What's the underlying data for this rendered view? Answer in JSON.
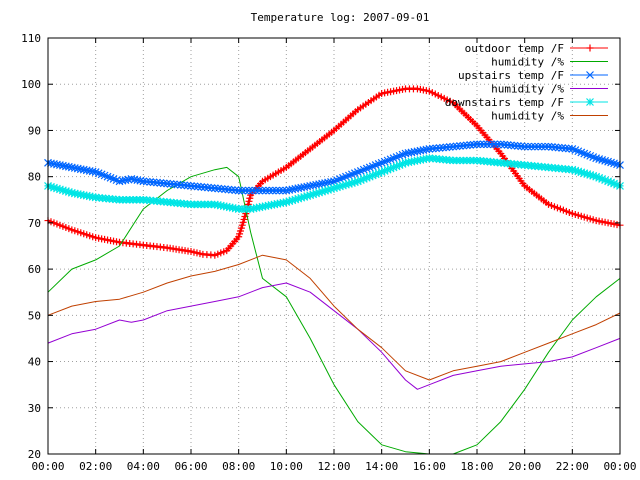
{
  "chart_data": {
    "type": "line",
    "title": "Temperature log: 2007-09-01",
    "xlabel": "",
    "ylabel": "",
    "x_ticks": [
      "00:00",
      "02:00",
      "04:00",
      "06:00",
      "08:00",
      "10:00",
      "12:00",
      "14:00",
      "16:00",
      "18:00",
      "20:00",
      "22:00",
      "00:00"
    ],
    "xlim": [
      0,
      24
    ],
    "ylim": [
      20,
      110
    ],
    "y_ticks": [
      20,
      30,
      40,
      50,
      60,
      70,
      80,
      90,
      100,
      110
    ],
    "grid": true,
    "legend_position": "top-right",
    "series": [
      {
        "name": "outdoor temp /F",
        "color": "#ff0000",
        "marker": "plus",
        "x": [
          0,
          1,
          2,
          3,
          4,
          5,
          6,
          6.5,
          7,
          7.5,
          8,
          8.3,
          8.5,
          9,
          10,
          11,
          12,
          13,
          14,
          15,
          15.5,
          16,
          17,
          18,
          19,
          20,
          21,
          22,
          23,
          24
        ],
        "y": [
          70.5,
          68.5,
          66.8,
          65.8,
          65.2,
          64.6,
          63.8,
          63.2,
          63,
          64,
          67,
          72,
          76,
          79,
          82,
          86,
          90,
          94.5,
          98,
          99,
          99,
          98.5,
          96,
          91,
          85,
          78,
          74,
          72,
          70.5,
          69.5
        ]
      },
      {
        "name": "humidity /%",
        "color": "#00aa00",
        "marker": "none",
        "x": [
          0,
          1,
          2,
          3,
          4,
          5,
          6,
          7,
          7.5,
          8,
          8.5,
          9,
          10,
          11,
          12,
          13,
          14,
          15,
          16,
          17,
          18,
          19,
          20,
          21,
          22,
          23,
          24
        ],
        "y": [
          55,
          60,
          62,
          65,
          73,
          77,
          80,
          81.5,
          82,
          80,
          68,
          58,
          54,
          45,
          35,
          27,
          22,
          20.5,
          20,
          20,
          22,
          27,
          34,
          42,
          49,
          54,
          58
        ]
      },
      {
        "name": "upstairs temp /F",
        "color": "#0066ff",
        "marker": "x",
        "x": [
          0,
          1,
          2,
          3,
          3.5,
          4,
          5,
          6,
          7,
          8,
          9,
          10,
          11,
          12,
          13,
          14,
          15,
          16,
          17,
          18,
          19,
          20,
          21,
          22,
          23,
          24
        ],
        "y": [
          83,
          82,
          81,
          79,
          79.5,
          79,
          78.5,
          78,
          77.5,
          77,
          77,
          77,
          78,
          79,
          81,
          83,
          85,
          86,
          86.5,
          87,
          87,
          86.5,
          86.5,
          86,
          84,
          82.5
        ]
      },
      {
        "name": "humidity /%",
        "color": "#9400d3",
        "marker": "none",
        "x": [
          0,
          1,
          2,
          3,
          3.5,
          4,
          5,
          6,
          7,
          8,
          9,
          10,
          11,
          12,
          13,
          14,
          15,
          15.5,
          16,
          17,
          18,
          19,
          20,
          21,
          22,
          23,
          24
        ],
        "y": [
          44,
          46,
          47,
          49,
          48.5,
          49,
          51,
          52,
          53,
          54,
          56,
          57,
          55,
          51,
          47,
          42,
          36,
          34,
          35,
          37,
          38,
          39,
          39.5,
          40,
          41,
          43,
          45
        ]
      },
      {
        "name": "downstairs temp /F",
        "color": "#00e5e5",
        "marker": "star",
        "x": [
          0,
          1,
          2,
          3,
          4,
          5,
          6,
          7,
          8,
          8.5,
          9,
          10,
          11,
          12,
          13,
          14,
          15,
          16,
          17,
          18,
          19,
          20,
          21,
          22,
          23,
          24
        ],
        "y": [
          78,
          76.5,
          75.5,
          75,
          75,
          74.5,
          74,
          74,
          73,
          73,
          73.5,
          74.5,
          76,
          77.5,
          79,
          81,
          83,
          84,
          83.5,
          83.5,
          83,
          82.5,
          82,
          81.5,
          80,
          78
        ]
      },
      {
        "name": "humidity /%",
        "color": "#c04000",
        "marker": "none",
        "x": [
          0,
          1,
          2,
          3,
          4,
          5,
          6,
          7,
          8,
          9,
          10,
          11,
          12,
          13,
          14,
          15,
          16,
          17,
          18,
          19,
          20,
          21,
          22,
          23,
          24
        ],
        "y": [
          50,
          52,
          53,
          53.5,
          55,
          57,
          58.5,
          59.5,
          61,
          63,
          62,
          58,
          52,
          47,
          43,
          38,
          36,
          38,
          39,
          40,
          42,
          44,
          46,
          48,
          50.5
        ]
      }
    ]
  }
}
